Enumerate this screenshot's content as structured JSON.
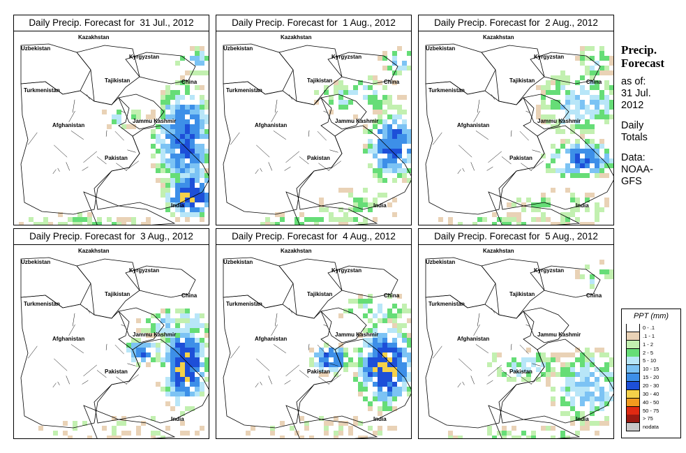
{
  "panels": [
    {
      "title": "Daily Precip. Forecast for  31 Jul., 2012",
      "seed": 1
    },
    {
      "title": "Daily Precip. Forecast for  1 Aug., 2012",
      "seed": 2
    },
    {
      "title": "Daily Precip. Forecast for  2 Aug., 2012",
      "seed": 3
    },
    {
      "title": "Daily Precip. Forecast for  3 Aug., 2012",
      "seed": 4
    },
    {
      "title": "Daily Precip. Forecast for  4 Aug., 2012",
      "seed": 5
    },
    {
      "title": "Daily Precip. Forecast for  5 Aug., 2012",
      "seed": 6
    }
  ],
  "map_labels": {
    "uzbekistan": "Uzbekistan",
    "kazakhstan": "Kazakhstan",
    "kyrgyzstan": "Kyrgyzstan",
    "tajikistan": "Tajikistan",
    "china": "China",
    "turkmenistan": "Turkmenistan",
    "afghanistan": "Afghanistan",
    "jammu_kashmir": "Jammu Kashmir",
    "pakistan": "Pakistan",
    "india": "India"
  },
  "sidebar": {
    "heading_line1": "Precip.",
    "heading_line2": "Forecast",
    "asof_line1": "as of:",
    "asof_line2": "31 Jul.",
    "asof_line3": "2012",
    "totals_line1": "Daily",
    "totals_line2": "Totals",
    "data_line1": "Data:",
    "data_line2": "NOAA-",
    "data_line3": "GFS"
  },
  "legend": {
    "title": "PPT (mm)",
    "entries": [
      {
        "label": "0 - .1",
        "color": "#ffffff"
      },
      {
        "label": ".1 - 1",
        "color": "#e9d2b6"
      },
      {
        "label": "1 - 2",
        "color": "#c2f0b0"
      },
      {
        "label": "2 - 5",
        "color": "#66dd77"
      },
      {
        "label": "5 - 10",
        "color": "#b8e6f8"
      },
      {
        "label": "10 - 15",
        "color": "#7cc3f4"
      },
      {
        "label": "15 - 20",
        "color": "#3d8fe8"
      },
      {
        "label": "20 - 30",
        "color": "#1d4fd8"
      },
      {
        "label": "30 - 40",
        "color": "#f5d14a"
      },
      {
        "label": "40 - 50",
        "color": "#f29a1e"
      },
      {
        "label": "50 - 75",
        "color": "#e02a12"
      },
      {
        "label": "> 75",
        "color": "#9a1a12"
      },
      {
        "label": "nodata",
        "color": "#c8c8c8"
      }
    ]
  }
}
